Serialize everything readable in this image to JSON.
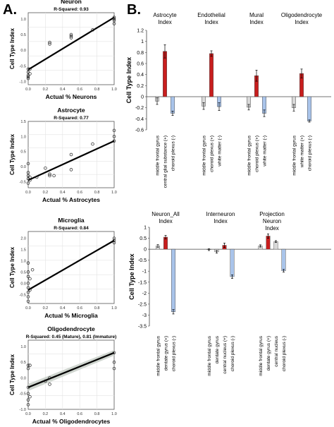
{
  "panel_labels": {
    "a": "A.",
    "b": "B."
  },
  "chart_data": [
    {
      "type": "scatter",
      "title": "Neuron",
      "subtitle": "R-Squared: 0.93",
      "xlabel": "Actual % Neurons",
      "ylabel": "Cell Type Index",
      "xlim": [
        0,
        1
      ],
      "ylim": [
        -1.1,
        1.2
      ],
      "grid": true,
      "points": [
        [
          0,
          -0.6
        ],
        [
          0,
          -0.7
        ],
        [
          0,
          -0.8
        ],
        [
          0,
          -0.85
        ],
        [
          0,
          -0.9
        ],
        [
          0.02,
          -0.6
        ],
        [
          0.02,
          -0.75
        ],
        [
          0.25,
          0.25
        ],
        [
          0.25,
          0.2
        ],
        [
          0.5,
          0.45
        ],
        [
          0.5,
          0.5
        ],
        [
          0.5,
          0.4
        ],
        [
          0.75,
          0.65
        ],
        [
          1,
          1.0
        ],
        [
          1,
          0.95
        ],
        [
          1,
          1.05
        ],
        [
          1,
          0.85
        ]
      ],
      "fit": [
        [
          0,
          -0.62
        ],
        [
          1,
          1.05
        ]
      ]
    },
    {
      "type": "scatter",
      "title": "Astrocyte",
      "subtitle": "R-Squared: 0.77",
      "xlabel": "Actual % Astrocytes",
      "ylabel": "Cell Type Index",
      "xlim": [
        0,
        1
      ],
      "ylim": [
        -0.7,
        1.5
      ],
      "grid": true,
      "points": [
        [
          0,
          -0.3
        ],
        [
          0,
          -0.4
        ],
        [
          0,
          -0.55
        ],
        [
          0,
          -0.2
        ],
        [
          0,
          0.1
        ],
        [
          0.02,
          -0.35
        ],
        [
          0.02,
          -0.45
        ],
        [
          0.1,
          -0.35
        ],
        [
          0.2,
          -0.05
        ],
        [
          0.25,
          -0.3
        ],
        [
          0.25,
          -0.25
        ],
        [
          0.3,
          -0.3
        ],
        [
          0.5,
          0.4
        ],
        [
          0.5,
          -0.1
        ],
        [
          0.75,
          0.75
        ],
        [
          1,
          1.2
        ],
        [
          1,
          1.0
        ],
        [
          1,
          0.85
        ]
      ],
      "fit": [
        [
          0,
          -0.45
        ],
        [
          1,
          0.85
        ]
      ]
    },
    {
      "type": "scatter",
      "title": "Microglia",
      "subtitle": "R-Squared: 0.84",
      "xlabel": "Actual % Microglia",
      "ylabel": "Cell Type Index",
      "xlim": [
        0,
        1
      ],
      "ylim": [
        -0.9,
        2.3
      ],
      "grid": true,
      "points": [
        [
          0,
          0.9
        ],
        [
          0,
          0.5
        ],
        [
          0,
          0.3
        ],
        [
          0,
          0.0
        ],
        [
          0,
          -0.2
        ],
        [
          0,
          -0.4
        ],
        [
          0,
          -0.6
        ],
        [
          0,
          -0.8
        ],
        [
          0.02,
          0.2
        ],
        [
          0.02,
          -0.3
        ],
        [
          0.05,
          0.6
        ],
        [
          1,
          2.0
        ],
        [
          1,
          1.9
        ],
        [
          1,
          1.8
        ]
      ],
      "fit": [
        [
          0,
          -0.3
        ],
        [
          1,
          1.9
        ]
      ]
    },
    {
      "type": "scatter",
      "title": "Oligodendrocyte",
      "subtitle": "R-Squared: 0.45 (Mature), 0.81 (Immature)",
      "xlabel": "Actual % Oligodendrocytes",
      "ylabel": "Cell Type Index",
      "xlim": [
        0,
        1
      ],
      "ylim": [
        -1.0,
        1.2
      ],
      "grid": true,
      "points": [
        [
          0,
          0.4
        ],
        [
          0,
          0.3
        ],
        [
          0,
          -0.3
        ],
        [
          0,
          -0.5
        ],
        [
          0,
          -0.7
        ],
        [
          0,
          -0.85
        ],
        [
          0.02,
          0.4
        ],
        [
          0.02,
          -0.6
        ],
        [
          0.2,
          -0.1
        ],
        [
          0.25,
          0.0
        ],
        [
          0.25,
          -0.2
        ],
        [
          1,
          0.8
        ],
        [
          1,
          0.5
        ],
        [
          1,
          0.3
        ]
      ],
      "fit": [
        [
          0,
          -0.3
        ],
        [
          1,
          0.8
        ]
      ]
    },
    {
      "type": "bar",
      "ylabel": "Cell Type Index",
      "ylim": [
        -0.6,
        1.2
      ],
      "yticks": [
        "1.2",
        "1",
        "0.8",
        "0.6",
        "0.4",
        "0.2",
        "0",
        "-0.2",
        "-0.4",
        "-0.6"
      ],
      "groups": [
        {
          "title": "Astrocyte Index",
          "categories": [
            "middle frontal gyrus",
            "central glial substance (+)",
            "choroid plexus (-)"
          ],
          "values": [
            -0.08,
            0.82,
            -0.3
          ],
          "errors": [
            0.06,
            0.12,
            0.04
          ]
        },
        {
          "title": "Endothelial Index",
          "categories": [
            "middle frontal gyrus",
            "choroid plexus (+)",
            "white matter (-)"
          ],
          "values": [
            -0.17,
            0.78,
            -0.18
          ],
          "errors": [
            0.06,
            0.05,
            0.07
          ]
        },
        {
          "title": "Mural Index",
          "categories": [
            "middle frontal gyrus",
            "choroid plexus (+)",
            "white matter (-)"
          ],
          "values": [
            -0.19,
            0.38,
            -0.3
          ],
          "errors": [
            0.05,
            0.1,
            0.06
          ]
        },
        {
          "title": "Oligodendrocyte Index",
          "categories": [
            "middle frontal gyrus",
            "white matter (+)",
            "choroid plexus (-)"
          ],
          "values": [
            -0.2,
            0.42,
            -0.44
          ],
          "errors": [
            0.06,
            0.08,
            0.02
          ]
        }
      ]
    },
    {
      "type": "bar",
      "ylabel": "Cell Type Index",
      "ylim": [
        -3.5,
        1.0
      ],
      "yticks": [
        "1",
        "0.5",
        "0",
        "-0.5",
        "-1",
        "-1.5",
        "-2",
        "-2.5",
        "-3",
        "-3.5"
      ],
      "groups": [
        {
          "title": "Neuron_All Index",
          "categories": [
            "middle frontal gyrus",
            "dentate gyrus (+)",
            "choroid plexus (-)"
          ],
          "values": [
            0.15,
            0.55,
            -2.85
          ],
          "errors": [
            0.06,
            0.08,
            0.1
          ]
        },
        {
          "title": "Interneuron Index",
          "categories": [
            "middle frontal gyrus",
            "dentate gyrus",
            "central nucleus (+)",
            "choroid plexus (-)"
          ],
          "values": [
            -0.02,
            -0.12,
            0.18,
            -1.25
          ],
          "errors": [
            0.04,
            0.06,
            0.1,
            0.08
          ]
        },
        {
          "title": "Projection Neuron Index",
          "categories": [
            "middle frontal gyrus",
            "dentate gyrus (+)",
            "central nucleus",
            "choroid plexus (-)"
          ],
          "values": [
            0.15,
            0.6,
            0.35,
            -0.98
          ],
          "errors": [
            0.05,
            0.1,
            0.04,
            0.06
          ]
        }
      ]
    }
  ],
  "colors": {
    "pos": "#c81e1e",
    "neg": "#a9c4ea",
    "neutral": "#d9d9d9",
    "line": "#000000"
  }
}
